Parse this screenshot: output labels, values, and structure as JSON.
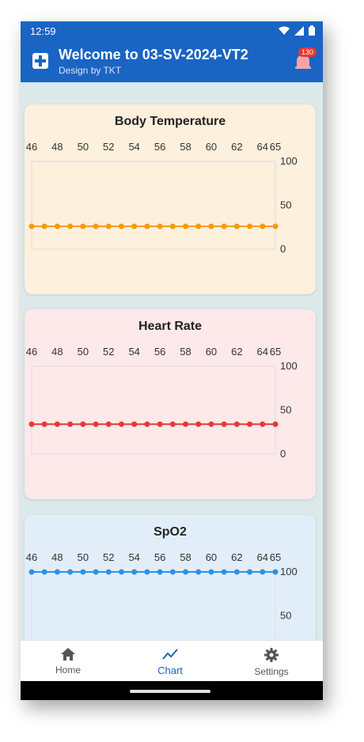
{
  "status_bar": {
    "time": "12:59"
  },
  "app_bar": {
    "title": "Welcome to 03-SV-2024-VT2",
    "subtitle": "Design by TKT",
    "notification_count": "130"
  },
  "colors": {
    "primary": "#1a64c4",
    "temperature_line": "#f59b14",
    "heart_line": "#e53935",
    "spo2_line": "#2f91e0"
  },
  "chart_data": [
    {
      "type": "line",
      "title": "Body Temperature",
      "x": [
        46,
        47,
        48,
        49,
        50,
        51,
        52,
        53,
        54,
        55,
        56,
        57,
        58,
        59,
        60,
        61,
        62,
        63,
        64,
        65
      ],
      "xticks": [
        "46",
        "48",
        "50",
        "52",
        "54",
        "56",
        "58",
        "60",
        "62",
        "64",
        "65"
      ],
      "yticks": [
        "100",
        "50",
        "0"
      ],
      "ylim": [
        0,
        100
      ],
      "series": [
        {
          "values": [
            26,
            26,
            26,
            26,
            26,
            26,
            26,
            26,
            26,
            26,
            26,
            26,
            26,
            26,
            26,
            26,
            26,
            26,
            26,
            26
          ]
        }
      ],
      "background": "#fdf0dc",
      "line_color": "#f59b14"
    },
    {
      "type": "line",
      "title": "Heart Rate",
      "x": [
        46,
        47,
        48,
        49,
        50,
        51,
        52,
        53,
        54,
        55,
        56,
        57,
        58,
        59,
        60,
        61,
        62,
        63,
        64,
        65
      ],
      "xticks": [
        "46",
        "48",
        "50",
        "52",
        "54",
        "56",
        "58",
        "60",
        "62",
        "64",
        "65"
      ],
      "yticks": [
        "100",
        "50",
        "0"
      ],
      "ylim": [
        0,
        100
      ],
      "series": [
        {
          "values": [
            34,
            34,
            34,
            34,
            34,
            34,
            34,
            34,
            34,
            34,
            34,
            34,
            34,
            34,
            34,
            34,
            34,
            34,
            34,
            34
          ]
        }
      ],
      "background": "#fde8ea",
      "line_color": "#e53935"
    },
    {
      "type": "line",
      "title": "SpO2",
      "x": [
        46,
        47,
        48,
        49,
        50,
        51,
        52,
        53,
        54,
        55,
        56,
        57,
        58,
        59,
        60,
        61,
        62,
        63,
        64,
        65
      ],
      "xticks": [
        "46",
        "48",
        "50",
        "52",
        "54",
        "56",
        "58",
        "60",
        "62",
        "64",
        "65"
      ],
      "yticks": [
        "100",
        "50",
        "0"
      ],
      "ylim": [
        0,
        100
      ],
      "series": [
        {
          "values": [
            100,
            100,
            100,
            100,
            100,
            100,
            100,
            100,
            100,
            100,
            100,
            100,
            100,
            100,
            100,
            100,
            100,
            100,
            100,
            100
          ]
        }
      ],
      "background": "#e1eefa",
      "line_color": "#2f91e0"
    }
  ],
  "bottom_nav": {
    "items": [
      {
        "label": "Home",
        "icon": "home-icon"
      },
      {
        "label": "Chart",
        "icon": "chart-icon",
        "active": true
      },
      {
        "label": "Settings",
        "icon": "gear-icon"
      }
    ]
  }
}
